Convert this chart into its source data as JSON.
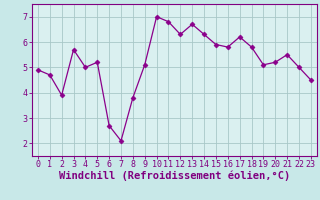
{
  "x": [
    0,
    1,
    2,
    3,
    4,
    5,
    6,
    7,
    8,
    9,
    10,
    11,
    12,
    13,
    14,
    15,
    16,
    17,
    18,
    19,
    20,
    21,
    22,
    23
  ],
  "y": [
    4.9,
    4.7,
    3.9,
    5.7,
    5.0,
    5.2,
    2.7,
    2.1,
    3.8,
    5.1,
    7.0,
    6.8,
    6.3,
    6.7,
    6.3,
    5.9,
    5.8,
    6.2,
    5.8,
    5.1,
    5.2,
    5.5,
    5.0,
    4.5
  ],
  "line_color": "#8b008b",
  "marker": "D",
  "marker_size": 2.5,
  "bg_color": "#c8e8e8",
  "grid_color": "#a8c8c8",
  "xlabel": "Windchill (Refroidissement éolien,°C)",
  "ylim": [
    1.5,
    7.5
  ],
  "yticks": [
    2,
    3,
    4,
    5,
    6,
    7
  ],
  "xlim": [
    -0.5,
    23.5
  ],
  "xticks": [
    0,
    1,
    2,
    3,
    4,
    5,
    6,
    7,
    8,
    9,
    10,
    11,
    12,
    13,
    14,
    15,
    16,
    17,
    18,
    19,
    20,
    21,
    22,
    23
  ],
  "xtick_labels": [
    "0",
    "1",
    "2",
    "3",
    "4",
    "5",
    "6",
    "7",
    "8",
    "9",
    "10",
    "11",
    "12",
    "13",
    "14",
    "15",
    "16",
    "17",
    "18",
    "19",
    "20",
    "21",
    "22",
    "23"
  ],
  "spine_color": "#800080",
  "axis_bg_color": "#daf0f0",
  "label_fontsize": 7,
  "tick_fontsize": 6,
  "xlabel_fontsize": 7.5
}
